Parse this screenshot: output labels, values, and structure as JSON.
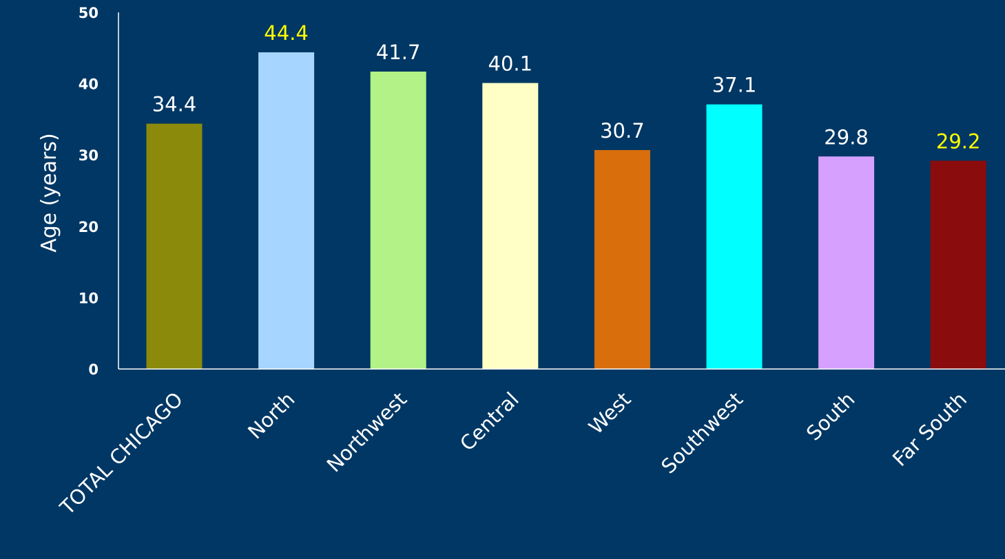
{
  "chart_data": {
    "type": "bar",
    "ylabel": "Age (years)",
    "ylim": [
      0,
      50
    ],
    "yticks": [
      "0",
      "10",
      "20",
      "30",
      "40",
      "50"
    ],
    "categories": [
      "TOTAL CHICAGO",
      "North",
      "Northwest",
      "Central",
      "West",
      "Southwest",
      "South",
      "Far South"
    ],
    "values": [
      34.4,
      44.4,
      41.7,
      40.1,
      30.7,
      37.1,
      29.8,
      29.2
    ],
    "value_labels": [
      "34.4",
      "44.4",
      "41.7",
      "40.1",
      "30.7",
      "37.1",
      "29.8",
      "29.2"
    ],
    "bar_colors": [
      "#8b8a0a",
      "#a6d5ff",
      "#b2f286",
      "#ffffc6",
      "#d86e0c",
      "#00ffff",
      "#d6a0ff",
      "#8b0c0c"
    ],
    "label_colors": [
      "#ffffff",
      "#ffff00",
      "#ffffff",
      "#ffffff",
      "#ffffff",
      "#ffffff",
      "#ffffff",
      "#ffff00"
    ],
    "grid": false,
    "legend": "none"
  },
  "colors": {
    "background": "#003764",
    "axis": "#ffffff",
    "text": "#ffffff"
  }
}
